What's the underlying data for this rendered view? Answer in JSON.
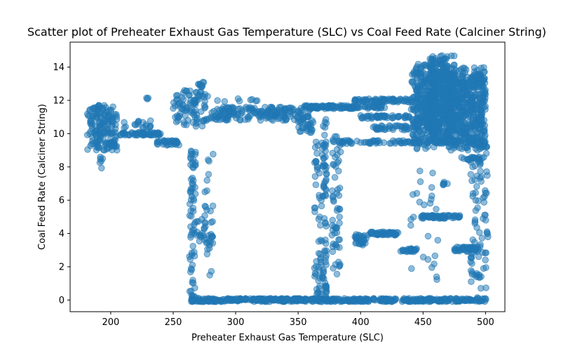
{
  "chart_data": {
    "type": "scatter",
    "title": "Scatter plot of Preheater Exhaust Gas Temperature (SLC) vs Coal Feed Rate (Calciner String)",
    "xlabel": "Preheater Exhaust Gas Temperature (SLC)",
    "ylabel": "Coal Feed Rate (Calciner String)",
    "xlim": [
      167.5,
      515.5
    ],
    "ylim": [
      -0.7,
      15.5
    ],
    "x_ticks": [
      200,
      250,
      300,
      350,
      400,
      450,
      500
    ],
    "y_ticks": [
      0,
      2,
      4,
      6,
      8,
      10,
      12,
      14
    ],
    "grid": false,
    "legend": "none",
    "color": "#1f77b4",
    "clusters": [
      {
        "x": [
          181,
          205
        ],
        "y": [
          9.0,
          11.8
        ],
        "n": 160
      },
      {
        "x": [
          190,
          196
        ],
        "y": [
          7.9,
          8.6
        ],
        "n": 6
      },
      {
        "x": [
          200,
          240
        ],
        "y": [
          9.9,
          10.1
        ],
        "n": 60
      },
      {
        "x": [
          210,
          232
        ],
        "y": [
          10.3,
          10.9
        ],
        "n": 18
      },
      {
        "x": [
          228,
          230
        ],
        "y": [
          12.0,
          12.3
        ],
        "n": 3
      },
      {
        "x": [
          237,
          255
        ],
        "y": [
          9.3,
          9.6
        ],
        "n": 35
      },
      {
        "x": [
          250,
          278
        ],
        "y": [
          10.4,
          12.6
        ],
        "n": 90
      },
      {
        "x": [
          270,
          275
        ],
        "y": [
          12.8,
          13.1
        ],
        "n": 10
      },
      {
        "x": [
          263,
          268
        ],
        "y": [
          0.0,
          9.0
        ],
        "n": 70
      },
      {
        "x": [
          264,
          300
        ],
        "y": [
          -0.1,
          0.1
        ],
        "n": 80
      },
      {
        "x": [
          268,
          282
        ],
        "y": [
          3.4,
          5.2
        ],
        "n": 25
      },
      {
        "x": [
          275,
          282
        ],
        "y": [
          1.2,
          9.0
        ],
        "n": 25
      },
      {
        "x": [
          278,
          360
        ],
        "y": [
          10.8,
          11.6
        ],
        "n": 180
      },
      {
        "x": [
          285,
          335
        ],
        "y": [
          11.9,
          12.1
        ],
        "n": 8
      },
      {
        "x": [
          300,
          500
        ],
        "y": [
          -0.1,
          0.1
        ],
        "n": 420
      },
      {
        "x": [
          350,
          362
        ],
        "y": [
          9.8,
          10.8
        ],
        "n": 25
      },
      {
        "x": [
          355,
          420
        ],
        "y": [
          11.5,
          11.7
        ],
        "n": 120
      },
      {
        "x": [
          363,
          370
        ],
        "y": [
          0.3,
          9.6
        ],
        "n": 60
      },
      {
        "x": [
          370,
          373
        ],
        "y": [
          0.2,
          11.5
        ],
        "n": 60
      },
      {
        "x": [
          377,
          384
        ],
        "y": [
          1.5,
          10.2
        ],
        "n": 60
      },
      {
        "x": [
          380,
          500
        ],
        "y": [
          9.4,
          9.6
        ],
        "n": 110
      },
      {
        "x": [
          395,
          440
        ],
        "y": [
          11.9,
          12.1
        ],
        "n": 70
      },
      {
        "x": [
          395,
          405
        ],
        "y": [
          3.3,
          4.0
        ],
        "n": 30
      },
      {
        "x": [
          405,
          430
        ],
        "y": [
          3.9,
          4.1
        ],
        "n": 50
      },
      {
        "x": [
          400,
          440
        ],
        "y": [
          10.9,
          11.1
        ],
        "n": 50
      },
      {
        "x": [
          410,
          445
        ],
        "y": [
          10.2,
          10.5
        ],
        "n": 40
      },
      {
        "x": [
          432,
          445
        ],
        "y": [
          2.9,
          3.1
        ],
        "n": 25
      },
      {
        "x": [
          448,
          480
        ],
        "y": [
          4.9,
          5.1
        ],
        "n": 60
      },
      {
        "x": [
          440,
          462
        ],
        "y": [
          0.9,
          8.0
        ],
        "n": 25
      },
      {
        "x": [
          465,
          470
        ],
        "y": [
          6.9,
          7.1
        ],
        "n": 6
      },
      {
        "x": [
          475,
          495
        ],
        "y": [
          2.9,
          3.2
        ],
        "n": 45
      },
      {
        "x": [
          480,
          500
        ],
        "y": [
          8.4,
          8.6
        ],
        "n": 20
      },
      {
        "x": [
          488,
          502
        ],
        "y": [
          0.0,
          10.0
        ],
        "n": 90
      },
      {
        "x": [
          440,
          460
        ],
        "y": [
          9.0,
          14.2
        ],
        "n": 200
      },
      {
        "x": [
          455,
          475
        ],
        "y": [
          9.5,
          14.7
        ],
        "n": 350
      },
      {
        "x": [
          470,
          500
        ],
        "y": [
          9.0,
          14.0
        ],
        "n": 350
      },
      {
        "x": [
          445,
          500
        ],
        "y": [
          10.0,
          13.5
        ],
        "n": 300
      }
    ]
  }
}
